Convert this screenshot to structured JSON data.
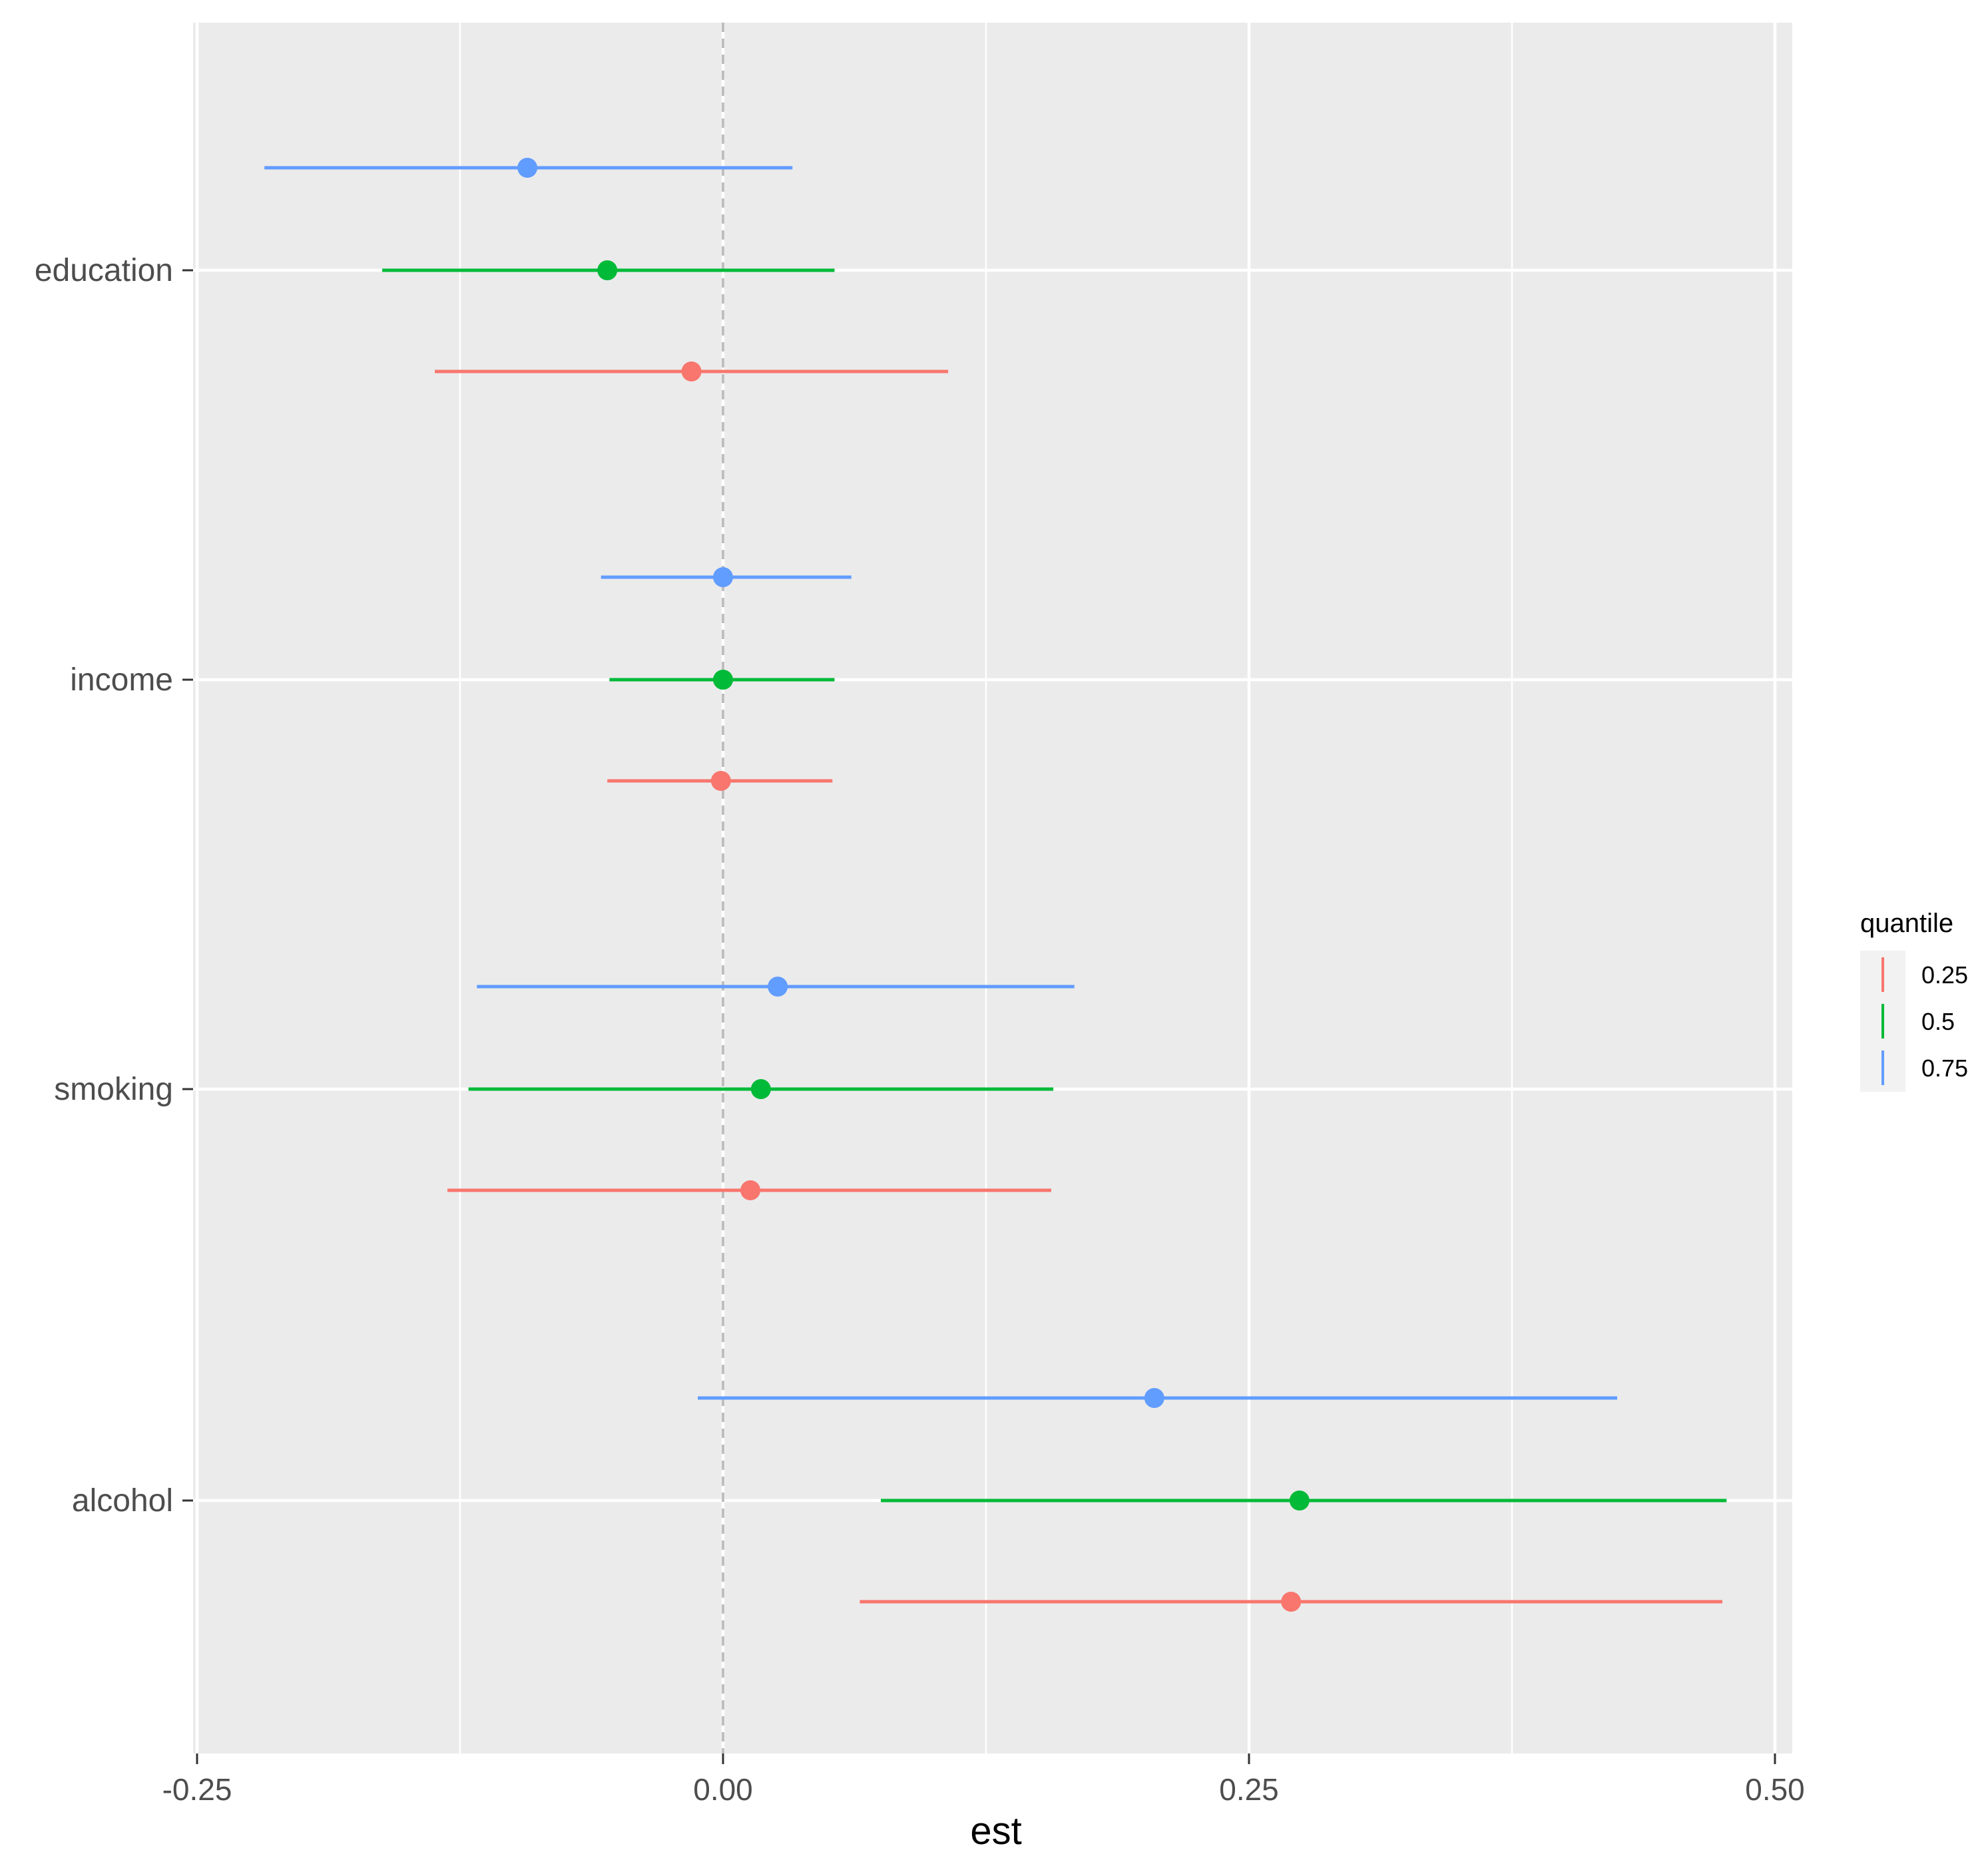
{
  "chart_data": {
    "type": "scatter",
    "subtype": "forest-plot",
    "title": "",
    "xlabel": "est",
    "ylabel": "",
    "xlim": [
      -0.25,
      0.5
    ],
    "x_ticks": [
      "-0.25",
      "0.00",
      "0.25",
      "0.50"
    ],
    "x_tick_values": [
      -0.25,
      0.0,
      0.25,
      0.5
    ],
    "categories": [
      "education",
      "income",
      "smoking",
      "alcohol"
    ],
    "reference_line": 0,
    "grid": true,
    "legend": {
      "title": "quantile",
      "position": "right",
      "entries": [
        "0.25",
        "0.5",
        "0.75"
      ]
    },
    "colors": {
      "0.25": "#F8766D",
      "0.5": "#00BA38",
      "0.75": "#619CFF",
      "panel": "#EBEBEB",
      "grid": "#FFFFFF"
    },
    "series": [
      {
        "name": "0.25",
        "estimates": [
          -0.015,
          -0.001,
          0.013,
          0.27
        ],
        "lower": [
          -0.137,
          -0.055,
          -0.131,
          0.065
        ],
        "upper": [
          0.107,
          0.052,
          0.156,
          0.475
        ]
      },
      {
        "name": "0.5",
        "estimates": [
          -0.055,
          0.0,
          0.018,
          0.274
        ],
        "lower": [
          -0.162,
          -0.054,
          -0.121,
          0.075
        ],
        "upper": [
          0.053,
          0.053,
          0.157,
          0.477
        ]
      },
      {
        "name": "0.75",
        "estimates": [
          -0.093,
          0.0,
          0.026,
          0.205
        ],
        "lower": [
          -0.218,
          -0.058,
          -0.117,
          -0.012
        ],
        "upper": [
          0.033,
          0.061,
          0.167,
          0.425
        ]
      }
    ]
  }
}
